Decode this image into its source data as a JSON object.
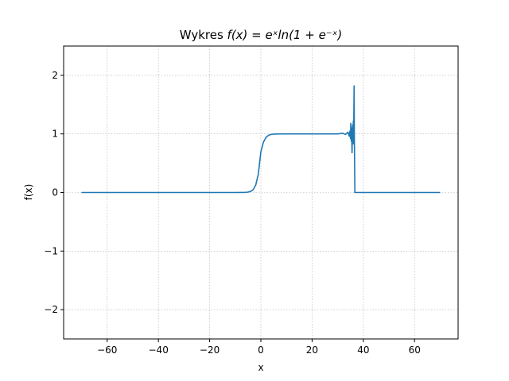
{
  "chart_data": {
    "type": "line",
    "title_text": "Wykres ",
    "title_math": "f(x) = eˣln(1 + e⁻ˣ)",
    "xlabel": "x",
    "ylabel": "f(x)",
    "xlim": [
      -77,
      77
    ],
    "ylim": [
      -2.5,
      2.5
    ],
    "xticks": [
      -60,
      -40,
      -20,
      0,
      20,
      40,
      60
    ],
    "yticks": [
      -2,
      -1,
      0,
      1,
      2
    ],
    "xtick_labels": [
      "−60",
      "−40",
      "−20",
      "0",
      "20",
      "40",
      "60"
    ],
    "ytick_labels": [
      "−2",
      "−1",
      "0",
      "1",
      "2"
    ],
    "grid": true,
    "series": [
      {
        "color": "#1f77b4",
        "x": [
          -70,
          -10,
          -8,
          -6,
          -5,
          -4,
          -3,
          -2,
          -1,
          0,
          1,
          2,
          3,
          4,
          5,
          6,
          8,
          10,
          20,
          30,
          32,
          33,
          34,
          34.5,
          34.8,
          35,
          35.1,
          35.3,
          35.4,
          35.6,
          35.8,
          35.9,
          36.1,
          36.2,
          36.4,
          36.5,
          36.6,
          36.7,
          36.8,
          36.9,
          37,
          40,
          50,
          60,
          70
        ],
        "y": [
          0,
          5e-05,
          0.0003,
          0.0025,
          0.0067,
          0.018,
          0.049,
          0.127,
          0.313,
          0.693,
          0.858,
          0.94,
          0.977,
          0.991,
          0.997,
          0.999,
          1.0,
          1.0,
          1.0,
          1.0,
          1.01,
          0.99,
          1.03,
          0.96,
          1.05,
          0.92,
          1.18,
          0.88,
          1.1,
          0.68,
          1.15,
          0.9,
          1.22,
          0.83,
          1.82,
          0.95,
          0.5,
          0.0,
          0.0,
          0.0,
          0.0,
          0.0,
          0.0,
          0.0,
          0.0
        ]
      }
    ]
  }
}
